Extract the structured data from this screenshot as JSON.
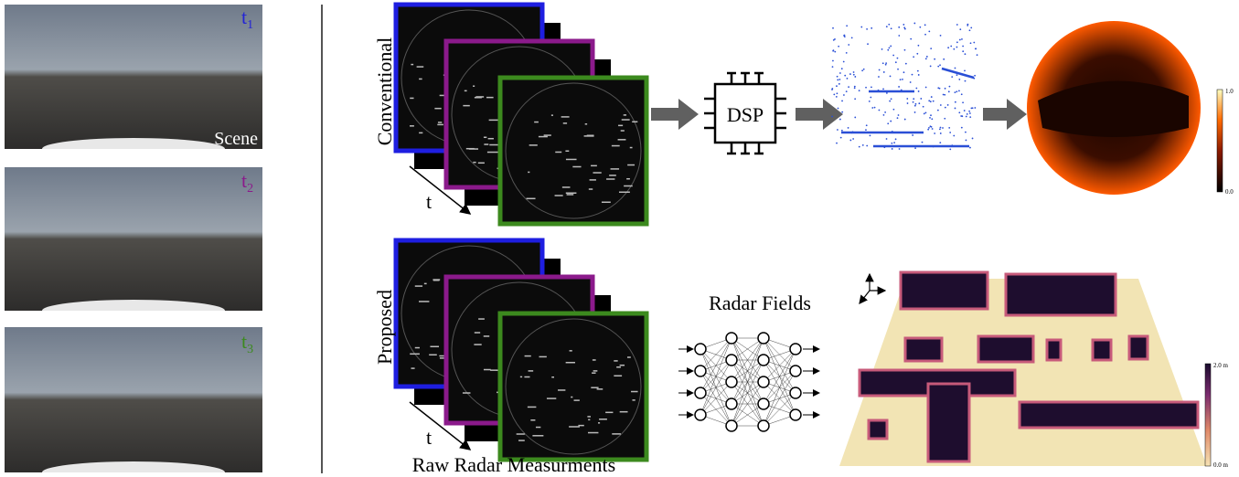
{
  "scenes": [
    {
      "label": "t",
      "subscript": "1",
      "caption": "Scene"
    },
    {
      "label": "t",
      "subscript": "2"
    },
    {
      "label": "t",
      "subscript": "3"
    }
  ],
  "conventional": {
    "title": "Conventional",
    "time_label": "t",
    "processor": "DSP",
    "colorbar": {
      "top": "1.0",
      "bottom": "0.0"
    }
  },
  "proposed": {
    "title": "Proposed",
    "time_label": "t",
    "network": "Radar Fields",
    "caption": "Raw Radar Measurments",
    "colorbar": {
      "top": "2.0 m",
      "bottom": "0.0 m"
    }
  }
}
